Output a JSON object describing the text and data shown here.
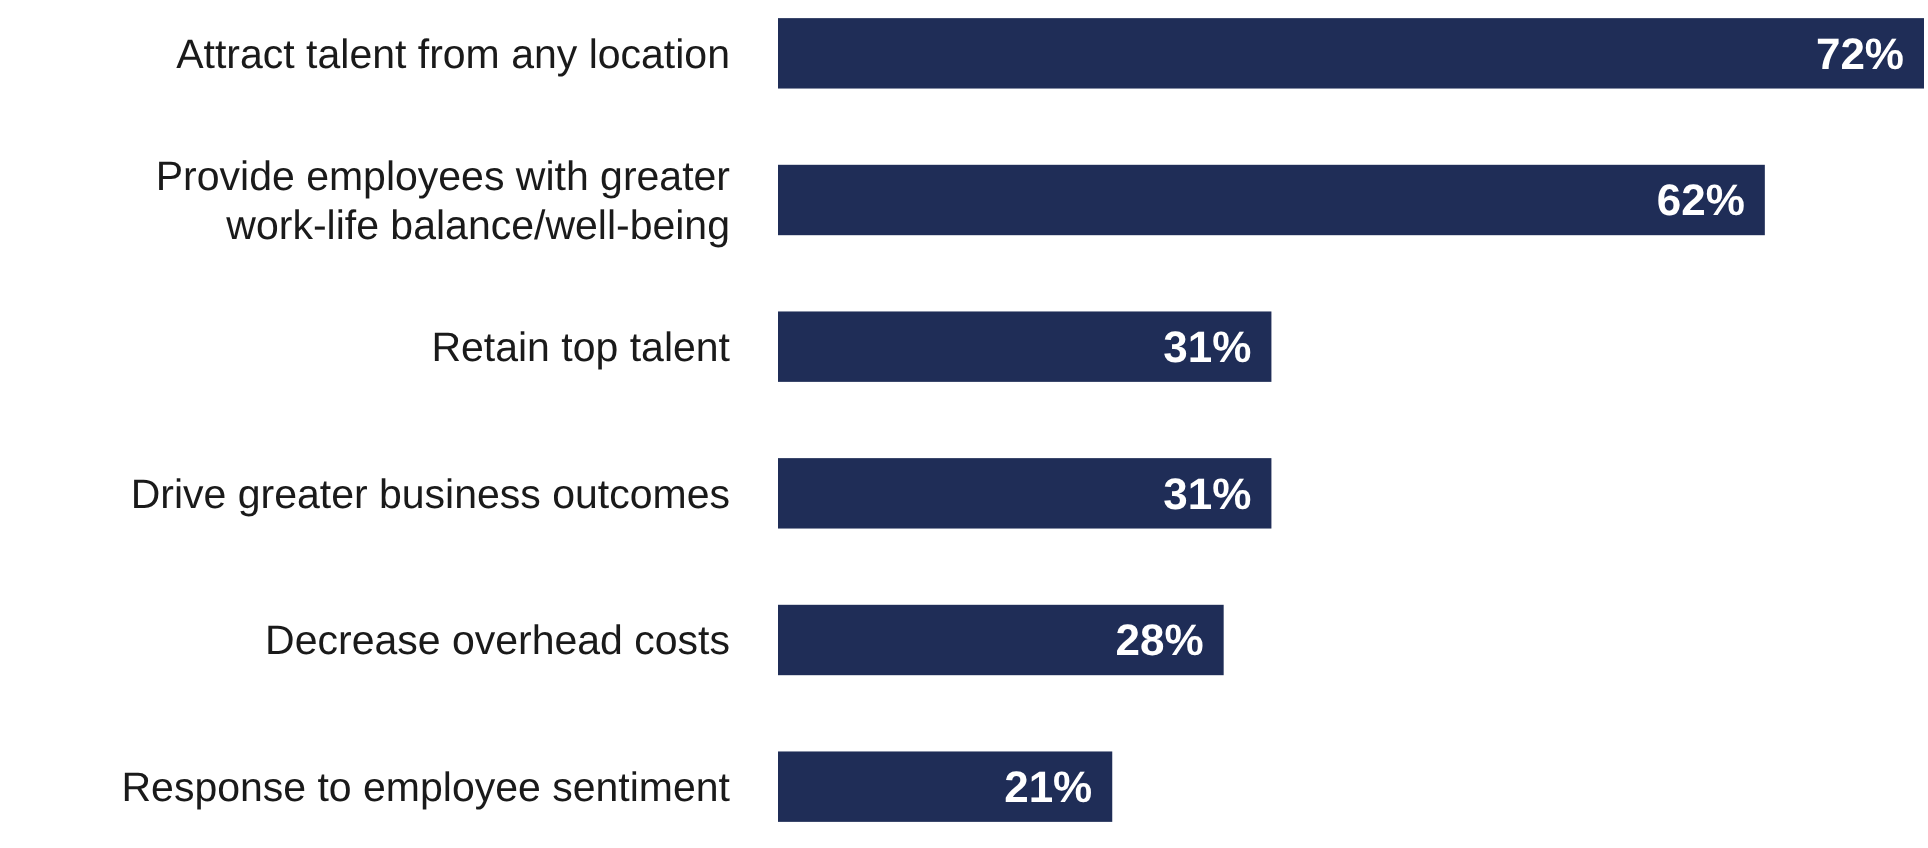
{
  "chart_data": {
    "type": "bar",
    "orientation": "horizontal",
    "categories": [
      "Attract talent from any location",
      "Provide employees with greater work-life balance/well-being",
      "Retain top talent",
      "Drive greater business outcomes",
      "Decrease overhead costs",
      "Response to employee sentiment"
    ],
    "values": [
      72,
      62,
      31,
      31,
      28,
      21
    ],
    "value_labels": [
      "72%",
      "62%",
      "31%",
      "31%",
      "28%",
      "21%"
    ],
    "color": "#1f2d57"
  }
}
